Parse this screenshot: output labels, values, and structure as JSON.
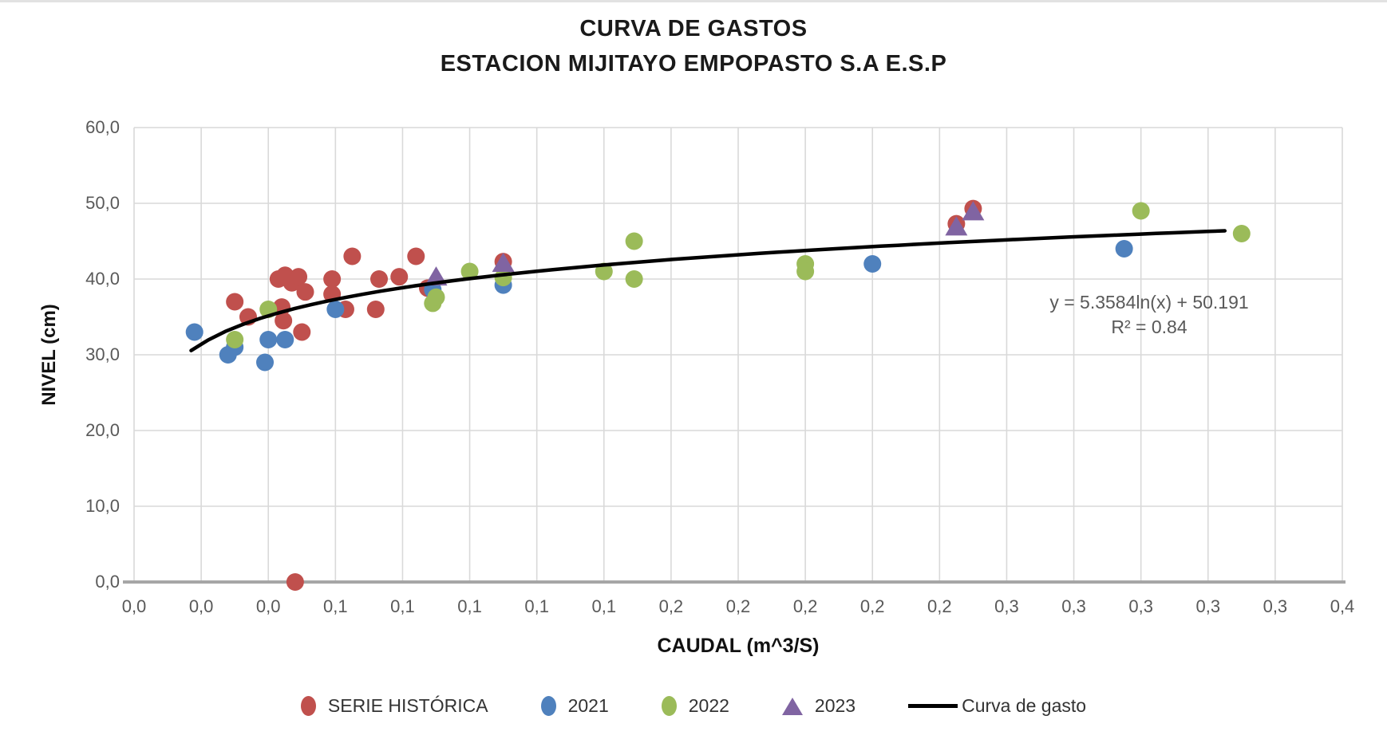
{
  "chart": {
    "title_line1": "CURVA DE GASTOS",
    "title_line2": "ESTACION MIJITAYO EMPOPASTO S.A E.S.P",
    "x_axis_title": "CAUDAL (m^3/S)",
    "y_axis_title": "NIVEL (cm)",
    "equation_line1": "y = 5.3584ln(x) + 50.191",
    "equation_line2": "R² = 0.84"
  },
  "legend": [
    {
      "label": "SERIE HISTÓRICA",
      "marker": "circle",
      "color": "#C0504D"
    },
    {
      "label": "2021",
      "marker": "circle",
      "color": "#4F81BD"
    },
    {
      "label": "2022",
      "marker": "circle",
      "color": "#9BBB59"
    },
    {
      "label": "2023",
      "marker": "triangle",
      "color": "#8064A2"
    },
    {
      "label": "Curva de gasto",
      "marker": "line",
      "color": "#000000"
    }
  ],
  "colors": {
    "serie_historica": "#C0504D",
    "y2021": "#4F81BD",
    "y2022": "#9BBB59",
    "y2023": "#8064A2",
    "trend": "#000000",
    "gridline": "#D9D9D9",
    "axis_line": "#A6A6A6",
    "tick_text": "#595959"
  },
  "chart_data": {
    "type": "scatter",
    "title": "CURVA DE GASTOS — ESTACION MIJITAYO EMPOPASTO S.A E.S.P",
    "xlabel": "CAUDAL (m^3/S)",
    "ylabel": "NIVEL (cm)",
    "xlim": [
      0,
      0.36
    ],
    "ylim": [
      0,
      60
    ],
    "x_tick_step": 0.02,
    "y_tick_step": 10,
    "x_tick_labels": [
      "0,0",
      "0,0",
      "0,0",
      "0,1",
      "0,1",
      "0,1",
      "0,1",
      "0,1",
      "0,2",
      "0,2",
      "0,2",
      "0,2",
      "0,2",
      "0,3",
      "0,3",
      "0,3",
      "0,3",
      "0,3",
      "0,4"
    ],
    "y_tick_labels": [
      "0,0",
      "10,0",
      "20,0",
      "30,0",
      "40,0",
      "50,0",
      "60,0"
    ],
    "grid": true,
    "legend_position": "bottom",
    "series": [
      {
        "name": "SERIE HISTÓRICA",
        "marker": "circle",
        "color": "#C0504D",
        "points": [
          [
            0.03,
            37
          ],
          [
            0.034,
            35
          ],
          [
            0.043,
            40
          ],
          [
            0.045,
            40.5
          ],
          [
            0.047,
            39.5
          ],
          [
            0.049,
            40.3
          ],
          [
            0.051,
            38.3
          ],
          [
            0.044,
            36.3
          ],
          [
            0.0445,
            34.5
          ],
          [
            0.048,
            0
          ],
          [
            0.05,
            33
          ],
          [
            0.059,
            40
          ],
          [
            0.059,
            38
          ],
          [
            0.063,
            36
          ],
          [
            0.065,
            43
          ],
          [
            0.072,
            36
          ],
          [
            0.073,
            40
          ],
          [
            0.079,
            40.3
          ],
          [
            0.084,
            43
          ],
          [
            0.0875,
            38.8
          ],
          [
            0.11,
            42.3
          ],
          [
            0.245,
            47.3
          ],
          [
            0.25,
            49.3
          ]
        ]
      },
      {
        "name": "2021",
        "marker": "circle",
        "color": "#4F81BD",
        "points": [
          [
            0.018,
            33
          ],
          [
            0.028,
            30
          ],
          [
            0.03,
            31
          ],
          [
            0.039,
            29
          ],
          [
            0.04,
            32
          ],
          [
            0.045,
            32
          ],
          [
            0.06,
            36
          ],
          [
            0.089,
            38.6
          ],
          [
            0.11,
            39.2
          ],
          [
            0.22,
            42
          ],
          [
            0.295,
            44
          ]
        ]
      },
      {
        "name": "2022",
        "marker": "circle",
        "color": "#9BBB59",
        "points": [
          [
            0.03,
            32
          ],
          [
            0.04,
            36
          ],
          [
            0.089,
            36.8
          ],
          [
            0.09,
            37.6
          ],
          [
            0.1,
            41
          ],
          [
            0.11,
            40.2
          ],
          [
            0.14,
            41
          ],
          [
            0.149,
            45
          ],
          [
            0.149,
            40
          ],
          [
            0.2,
            42
          ],
          [
            0.2,
            41
          ],
          [
            0.3,
            49
          ],
          [
            0.33,
            46
          ]
        ]
      },
      {
        "name": "2023",
        "marker": "triangle",
        "color": "#8064A2",
        "points": [
          [
            0.09,
            40.2
          ],
          [
            0.11,
            42.0
          ],
          [
            0.245,
            46.8
          ],
          [
            0.25,
            48.8
          ]
        ]
      }
    ],
    "trendline": {
      "name": "Curva de gasto",
      "color": "#000000",
      "equation": "y = 5.3584ln(x) + 50.191",
      "a": 5.3584,
      "b": 50.191,
      "r2": 0.84,
      "x_range": [
        0.017,
        0.325
      ]
    }
  }
}
